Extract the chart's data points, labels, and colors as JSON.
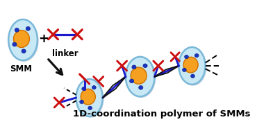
{
  "bg_color": "#ffffff",
  "ellipse_fill": "#c8e8f5",
  "ellipse_edge": "#7ab8d8",
  "ellipse_shadow": "#9ab0c8",
  "orange_fill": "#f5a020",
  "orange_edge": "#d07000",
  "blue_dot": "#1a35c0",
  "linker_blue": "#1a1acc",
  "linker_red": "#cc1010",
  "arrow_color": "#101010",
  "text_smm": "SMM",
  "text_linker": "linker",
  "text_polymer": "1D-coordination polymer of SMMs",
  "text_fontsize": 8.5,
  "polymer_fontsize": 9.5
}
